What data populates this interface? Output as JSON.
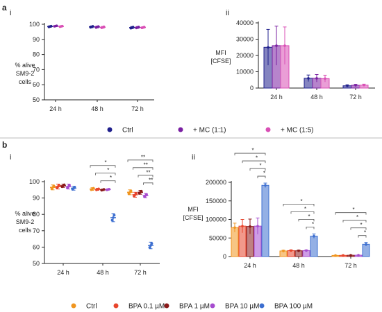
{
  "panel_a": {
    "label": "a",
    "viability": {
      "label": "i",
      "ylabel_lines": [
        "% alive",
        "SM9-2",
        "cells"
      ],
      "ylim": [
        50,
        100
      ],
      "yticks": [
        50,
        60,
        70,
        80,
        90,
        100
      ]
    },
    "mfi": {
      "label": "ii",
      "ylabel_lines": [
        "MFI",
        "[CFSE]"
      ],
      "ylim": [
        0,
        40000
      ],
      "yticks": [
        0,
        10000,
        20000,
        30000,
        40000
      ]
    },
    "legend": [
      {
        "label": "Ctrl",
        "color": "#1f1f8c"
      },
      {
        "label": "+ MC (1:1)",
        "color": "#7a1fa2"
      },
      {
        "label": "+ MC (1:5)",
        "color": "#d94fb5"
      }
    ]
  },
  "panel_b": {
    "label": "b",
    "viability": {
      "label": "i",
      "ylabel_lines": [
        "% alive",
        "SM9-2",
        "cells"
      ],
      "ylim": [
        50,
        100
      ],
      "yticks": [
        50,
        60,
        70,
        80,
        90,
        100
      ]
    },
    "mfi": {
      "label": "ii",
      "ylabel_lines": [
        "MFI",
        "[CFSE]"
      ],
      "ylim": [
        0,
        200000
      ],
      "yticks": [
        0,
        50000,
        100000,
        150000,
        200000
      ]
    },
    "legend": [
      {
        "label": "Ctrl",
        "color": "#f0951f"
      },
      {
        "label": "BPA 0.1 µM",
        "color": "#e8452c"
      },
      {
        "label": "BPA 1 µM",
        "color": "#8b1a1a"
      },
      {
        "label": "BPA 10 µM",
        "color": "#a64ccf"
      },
      {
        "label": "BPA 100 µM",
        "color": "#3d6fd0"
      }
    ]
  },
  "chart_data": [
    {
      "id": "a-i",
      "type": "scatter",
      "title": "",
      "xlabel": "",
      "ylabel": "% alive SM9-2 cells",
      "categories": [
        "24 h",
        "48 h",
        "72 h"
      ],
      "ylim": [
        50,
        100
      ],
      "series": [
        {
          "name": "Ctrl",
          "values": [
            98.5,
            98.3,
            97.8
          ],
          "error": [
            0.5,
            0.6,
            0.7
          ]
        },
        {
          "name": "+ MC (1:1)",
          "values": [
            98.8,
            98.2,
            97.9
          ],
          "error": [
            0.3,
            0.6,
            0.6
          ]
        },
        {
          "name": "+ MC (1:5)",
          "values": [
            98.6,
            98.0,
            97.9
          ],
          "error": [
            0.3,
            0.6,
            0.5
          ]
        }
      ]
    },
    {
      "id": "a-ii",
      "type": "bar",
      "title": "",
      "xlabel": "",
      "ylabel": "MFI [CFSE]",
      "categories": [
        "24 h",
        "48 h",
        "72 h"
      ],
      "ylim": [
        0,
        40000
      ],
      "series": [
        {
          "name": "Ctrl",
          "values": [
            25000,
            6000,
            1400
          ],
          "error": [
            11000,
            2000,
            600
          ]
        },
        {
          "name": "+ MC (1:1)",
          "values": [
            26000,
            6000,
            1700
          ],
          "error": [
            12000,
            2300,
            600
          ]
        },
        {
          "name": "+ MC (1:5)",
          "values": [
            26000,
            5800,
            1800
          ],
          "error": [
            11500,
            2100,
            600
          ]
        }
      ]
    },
    {
      "id": "b-i",
      "type": "scatter",
      "title": "",
      "xlabel": "",
      "ylabel": "% alive SM9-2 cells",
      "categories": [
        "24 h",
        "48 h",
        "72 h"
      ],
      "ylim": [
        50,
        100
      ],
      "series": [
        {
          "name": "Ctrl",
          "values": [
            96.5,
            95.5,
            93.5
          ],
          "error": [
            1.5,
            0.8,
            1.5
          ]
        },
        {
          "name": "BPA 0.1 µM",
          "values": [
            97.0,
            95.3,
            92.0
          ],
          "error": [
            1.5,
            0.6,
            1.5
          ]
        },
        {
          "name": "BPA 1 µM",
          "values": [
            97.5,
            95.0,
            93.5
          ],
          "error": [
            1.0,
            0.5,
            1.2
          ]
        },
        {
          "name": "BPA 10 µM",
          "values": [
            97.0,
            95.2,
            91.5
          ],
          "error": [
            1.5,
            0.4,
            1.3
          ]
        },
        {
          "name": "BPA 100 µM",
          "values": [
            96.0,
            78.0,
            61.0
          ],
          "error": [
            1.2,
            2.5,
            2.0
          ]
        }
      ],
      "significance": [
        {
          "category": "48 h",
          "pairs": [
            [
              "Ctrl",
              "BPA 100 µM"
            ],
            [
              "BPA 0.1 µM",
              "BPA 100 µM"
            ],
            [
              "BPA 1 µM",
              "BPA 100 µM"
            ]
          ],
          "labels": [
            "*",
            "*",
            "*"
          ]
        },
        {
          "category": "72 h",
          "pairs": [
            [
              "Ctrl",
              "BPA 100 µM"
            ],
            [
              "BPA 0.1 µM",
              "BPA 100 µM"
            ],
            [
              "BPA 1 µM",
              "BPA 100 µM"
            ],
            [
              "BPA 10 µM",
              "BPA 100 µM"
            ]
          ],
          "labels": [
            "**",
            "**",
            "**",
            "**"
          ]
        }
      ]
    },
    {
      "id": "b-ii",
      "type": "bar",
      "title": "",
      "xlabel": "",
      "ylabel": "MFI [CFSE]",
      "categories": [
        "24 h",
        "48 h",
        "72 h"
      ],
      "ylim": [
        0,
        200000
      ],
      "series": [
        {
          "name": "Ctrl",
          "values": [
            78000,
            15000,
            3000
          ],
          "error": [
            12000,
            2000,
            500
          ]
        },
        {
          "name": "BPA 0.1 µM",
          "values": [
            82000,
            16000,
            3200
          ],
          "error": [
            18000,
            2000,
            500
          ]
        },
        {
          "name": "BPA 1 µM",
          "values": [
            81000,
            15500,
            3500
          ],
          "error": [
            20000,
            2000,
            600
          ]
        },
        {
          "name": "BPA 10 µM",
          "values": [
            82000,
            16000,
            3600
          ],
          "error": [
            22000,
            2000,
            600
          ]
        },
        {
          "name": "BPA 100 µM",
          "values": [
            192000,
            55000,
            33000
          ],
          "error": [
            6000,
            6000,
            5000
          ]
        }
      ],
      "significance": [
        {
          "category": "24 h",
          "pairs": [
            [
              "Ctrl",
              "BPA 100 µM"
            ],
            [
              "BPA 0.1 µM",
              "BPA 100 µM"
            ],
            [
              "BPA 1 µM",
              "BPA 100 µM"
            ],
            [
              "BPA 10 µM",
              "BPA 100 µM"
            ]
          ],
          "labels": [
            "*",
            "*",
            "*",
            "*"
          ]
        },
        {
          "category": "48 h",
          "pairs": [
            [
              "Ctrl",
              "BPA 100 µM"
            ],
            [
              "BPA 0.1 µM",
              "BPA 100 µM"
            ],
            [
              "BPA 1 µM",
              "BPA 100 µM"
            ],
            [
              "BPA 10 µM",
              "BPA 100 µM"
            ]
          ],
          "labels": [
            "*",
            "*",
            "*",
            "*"
          ]
        },
        {
          "category": "72 h",
          "pairs": [
            [
              "Ctrl",
              "BPA 100 µM"
            ],
            [
              "BPA 0.1 µM",
              "BPA 100 µM"
            ],
            [
              "BPA 1 µM",
              "BPA 100 µM"
            ],
            [
              "BPA 10 µM",
              "BPA 100 µM"
            ]
          ],
          "labels": [
            "*",
            "*",
            "*",
            "*"
          ]
        }
      ]
    }
  ]
}
